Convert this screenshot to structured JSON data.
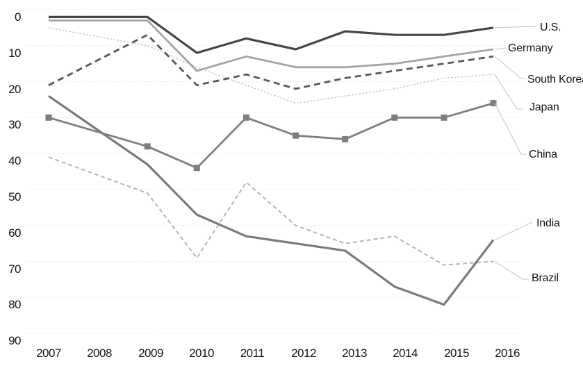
{
  "chart_data": {
    "type": "line",
    "title": "",
    "grid": "horizontal-dotted",
    "y_axis": {
      "direction": "inverted",
      "min": 0,
      "max": 90,
      "tick_labels": [
        "0",
        "10",
        "20",
        "30",
        "40",
        "50",
        "60",
        "70",
        "80",
        "90"
      ]
    },
    "x_axis": {
      "tick_labels": [
        "2007",
        "2008",
        "2009",
        "2010",
        "2011",
        "2012",
        "2013",
        "2014",
        "2015",
        "2016"
      ]
    },
    "years_plotted": [
      2007,
      2009,
      2010,
      2011,
      2012,
      2013,
      2014,
      2015,
      2016
    ],
    "legend_position": "right-edge-direct-labels",
    "series": [
      {
        "name": "U.S.",
        "color": "#454545",
        "line_style": "solid",
        "width": 3.2,
        "dash": "",
        "marker": "none",
        "values": [
          2,
          2,
          12,
          8,
          11,
          6,
          7,
          7,
          5
        ]
      },
      {
        "name": "Germany",
        "color": "#a4a4a4",
        "line_style": "solid",
        "width": 2.8,
        "dash": "",
        "marker": "none",
        "values": [
          3,
          3,
          17,
          13,
          16,
          16,
          15,
          13,
          11
        ]
      },
      {
        "name": "South Korea",
        "color": "#575757",
        "line_style": "dashed",
        "width": 2.8,
        "dash": "9 6",
        "marker": "none",
        "values": [
          21,
          7,
          21,
          18,
          22,
          19,
          17,
          15,
          13
        ]
      },
      {
        "name": "Japan",
        "color": "#c6c6c6",
        "line_style": "dotted",
        "width": 1.5,
        "dash": "2.5 2.5",
        "marker": "none",
        "values": [
          5,
          10,
          16,
          21,
          26,
          24,
          22,
          19,
          18
        ]
      },
      {
        "name": "China",
        "color": "#7e7e7e",
        "line_style": "solid",
        "width": 2.8,
        "dash": "",
        "marker": "square",
        "values": [
          30,
          38,
          44,
          30,
          35,
          36,
          30,
          30,
          26
        ]
      },
      {
        "name": "India",
        "color": "#7a7a7a",
        "line_style": "solid",
        "width": 3.2,
        "dash": "",
        "marker": "none",
        "values": [
          24,
          43,
          57,
          63,
          65,
          67,
          77,
          82,
          64
        ]
      },
      {
        "name": "Brazil",
        "color": "#b5b5b5",
        "line_style": "dashed",
        "width": 2.0,
        "dash": "6 4",
        "marker": "none",
        "values": [
          41,
          51,
          69,
          48,
          60,
          65,
          63,
          71,
          70
        ]
      }
    ],
    "colors": {
      "gridline": "#d8d8d8",
      "leader_line": "#c4c4c4",
      "text": "#161616"
    }
  }
}
